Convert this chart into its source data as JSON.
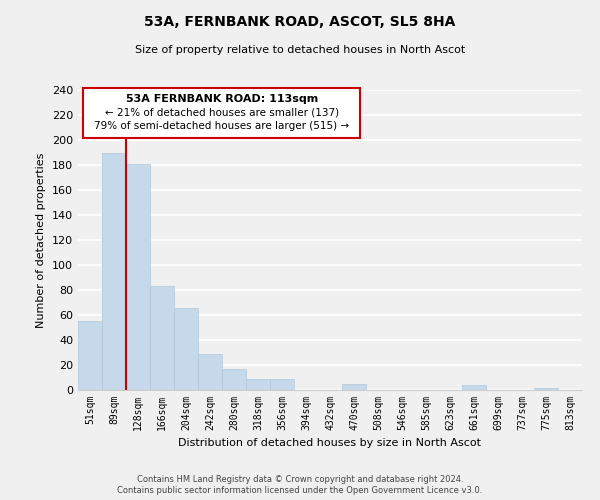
{
  "title": "53A, FERNBANK ROAD, ASCOT, SL5 8HA",
  "subtitle": "Size of property relative to detached houses in North Ascot",
  "xlabel": "Distribution of detached houses by size in North Ascot",
  "ylabel": "Number of detached properties",
  "bar_color": "#c5d9ea",
  "bar_edge_color": "#b0c8dc",
  "vline_color": "#cc0000",
  "categories": [
    "51sqm",
    "89sqm",
    "128sqm",
    "166sqm",
    "204sqm",
    "242sqm",
    "280sqm",
    "318sqm",
    "356sqm",
    "394sqm",
    "432sqm",
    "470sqm",
    "508sqm",
    "546sqm",
    "585sqm",
    "623sqm",
    "661sqm",
    "699sqm",
    "737sqm",
    "775sqm",
    "813sqm"
  ],
  "values": [
    55,
    190,
    181,
    83,
    66,
    29,
    17,
    9,
    9,
    0,
    0,
    5,
    0,
    0,
    0,
    0,
    4,
    0,
    0,
    2,
    0
  ],
  "ylim": [
    0,
    240
  ],
  "yticks": [
    0,
    20,
    40,
    60,
    80,
    100,
    120,
    140,
    160,
    180,
    200,
    220,
    240
  ],
  "annotation_title": "53A FERNBANK ROAD: 113sqm",
  "annotation_line1": "← 21% of detached houses are smaller (137)",
  "annotation_line2": "79% of semi-detached houses are larger (515) →",
  "footer_line1": "Contains HM Land Registry data © Crown copyright and database right 2024.",
  "footer_line2": "Contains public sector information licensed under the Open Government Licence v3.0.",
  "background_color": "#f0f0f0"
}
